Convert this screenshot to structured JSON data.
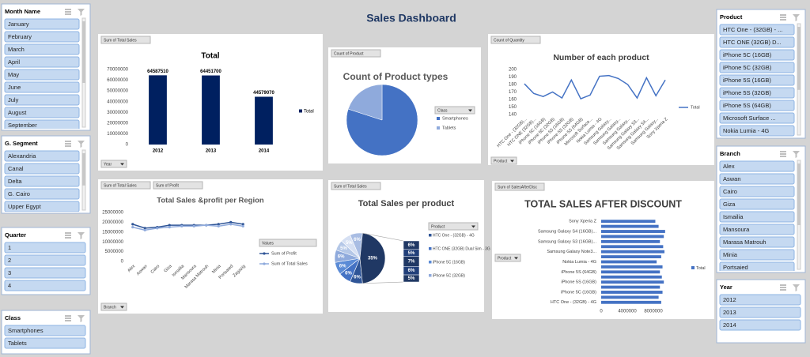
{
  "title": "Sales Dashboard",
  "slicers": [
    {
      "title": "Month Name",
      "items": [
        "January",
        "February",
        "March",
        "April",
        "May",
        "June",
        "July",
        "August",
        "September"
      ]
    },
    {
      "title": "G. Segment",
      "items": [
        "Alexandria",
        "Canal",
        "Delta",
        "G. Cairo",
        "Upper Egypt"
      ]
    },
    {
      "title": "Quarter",
      "items": [
        1,
        2,
        3,
        4
      ]
    },
    {
      "title": "Class",
      "items": [
        "Smartphones",
        "Tablets"
      ]
    },
    {
      "title": "Product",
      "items": [
        "HTC One - (32GB) - ...",
        "HTC ONE (32GB) D...",
        "iPhone 5C (16GB)",
        "iPhone 5C (32GB)",
        "iPhone 5S (16GB)",
        "iPhone 5S (32GB)",
        "iPhone 5S (64GB)",
        "Microsoft Surface ...",
        "Nokia Lumia - 4G"
      ]
    },
    {
      "title": "Branch",
      "items": [
        "Alex",
        "Aswan",
        "Cairo",
        "Giza",
        "Ismailia",
        "Mansoura",
        "Marasa Matrouh",
        "Minia",
        "Portsaied"
      ]
    },
    {
      "title": "Year",
      "items": [
        2012,
        2013,
        2014
      ]
    }
  ],
  "chart_data": [
    {
      "type": "bar",
      "title": "Total",
      "field_buttons": [
        "Sum of Total Sales"
      ],
      "filter_button": "Year",
      "categories": [
        2012,
        2013,
        2014
      ],
      "series": [
        {
          "name": "Total",
          "color": "#002060",
          "values": [
            64587510,
            64451700,
            44579070
          ]
        }
      ],
      "ylim": [
        0,
        70000000
      ],
      "yticks": [
        0,
        10000000,
        20000000,
        30000000,
        40000000,
        50000000,
        60000000,
        70000000
      ],
      "grid": false
    },
    {
      "type": "pie",
      "title": "Count of Product types",
      "field_buttons": [
        "Count of Product"
      ],
      "legend_title": "Class",
      "categories": [
        "Smartphones",
        "Tablets"
      ],
      "values": [
        80,
        20
      ],
      "colors": [
        "#4472c4",
        "#8faadc"
      ]
    },
    {
      "type": "line",
      "title": "Number of each product",
      "field_buttons": [
        "Count of Quantity"
      ],
      "filter_button": "Product",
      "categories": [
        "HTC One - (32GB)...",
        "HTC ONE (32GB)...",
        "iPhone 5C (16GB)",
        "iPhone 5C (32GB)",
        "iPhone 5S (16GB)",
        "iPhone 5S (32GB)",
        "iPhone 5S (64GB)",
        "Microsoft Surface...",
        "Nokia Lumia - 4G",
        "Samsung Galaxy...",
        "Samsung Galaxy...",
        "Samsung Galaxy...",
        "Samsung Galaxy S3...",
        "Samsung Galaxy S4...",
        "Samsung Galaxy...",
        "Sony Xperia Z"
      ],
      "series": [
        {
          "name": "Total",
          "color": "#4472c4",
          "values": [
            181,
            168,
            164,
            170,
            162,
            186,
            161,
            166,
            191,
            192,
            188,
            180,
            162,
            189,
            165,
            186
          ]
        }
      ],
      "ylim": [
        140,
        200
      ],
      "yticks": [
        140,
        150,
        160,
        170,
        180,
        190,
        200
      ],
      "markers": false
    },
    {
      "type": "line",
      "title": "Total Sales &profit per Region",
      "field_buttons": [
        "Sum of Total Sales",
        "Sum of Profit"
      ],
      "filter_button": "Branch",
      "legend_title": "Values",
      "categories": [
        "Alex",
        "Aswan",
        "Cairo",
        "Giza",
        "Ismailia",
        "Mansoura",
        "Marasa Matrouh",
        "Minia",
        "Portsaied",
        "Zagazig"
      ],
      "series": [
        {
          "name": "Sum of Profit",
          "color": "#2f5597",
          "values": [
            19000000,
            17000000,
            17500000,
            18500000,
            18500000,
            18500000,
            18500000,
            19000000,
            20000000,
            19000000
          ]
        },
        {
          "name": "Sum of Total Sales",
          "color": "#8faadc",
          "values": [
            17500000,
            16000000,
            17000000,
            17500000,
            18000000,
            18000000,
            18500000,
            18000000,
            19000000,
            18000000
          ]
        }
      ],
      "ylim": [
        0,
        25000000
      ],
      "yticks": [
        0,
        5000000,
        10000000,
        15000000,
        20000000,
        25000000
      ],
      "markers": true
    },
    {
      "type": "pie",
      "title": "Total Sales per product",
      "field_buttons": [
        "Sum of Total Sales"
      ],
      "legend_title": "Product",
      "legend_items": [
        "HTC One - (32GB) - 4G",
        "HTC ONE (32GB) Dual Sim - 3G",
        "iPhone 5C (16GB)",
        "iPhone 5C (32GB)"
      ],
      "values": [
        6,
        6,
        6,
        6,
        5,
        5,
        6,
        35
      ],
      "value_labels": [
        "6%",
        "6%",
        "6%",
        "6%",
        "5%",
        "5%",
        "6%",
        "35%"
      ],
      "colors": [
        "#2f5597",
        "#4472c4",
        "#5b8bd6",
        "#8faadc",
        "#b4c7e7",
        "#d6e0f3",
        "#a9bde3",
        "#203864"
      ],
      "secondary_values": [
        6,
        5,
        7,
        6,
        5
      ],
      "secondary_value_labels": [
        "6%",
        "5%",
        "7%",
        "6%",
        "5%"
      ],
      "secondary_colors": [
        "#203864",
        "#22407a",
        "#203864",
        "#22407a",
        "#203864"
      ]
    },
    {
      "type": "bar",
      "orientation": "horizontal",
      "title": "TOTAL SALES AFTER DISCOUNT",
      "field_buttons": [
        "Sum of SalesAfterDisc"
      ],
      "filter_button": "Product",
      "categories": [
        "HTC One - (32GB) - 4G",
        null,
        "iPhone 5C (16GB)",
        null,
        "iPhone 5S (16GB)",
        null,
        "iPhone 5S (64GB)",
        null,
        "Nokia Lumia - 4G",
        null,
        "Samsung Galaxy Note3...",
        null,
        "Samsung Galaxy S3 (16GB)...",
        null,
        "Samsung Galaxy S4 (16GB)...",
        null,
        "Sony Xperia Z"
      ],
      "series": [
        {
          "name": "Total",
          "color": "#4472c4",
          "values": [
            9200000,
            8800000,
            9400000,
            9000000,
            9600000,
            9300000,
            9000000,
            9400000,
            8500000,
            9200000,
            9700000,
            9500000,
            9000000,
            9600000,
            9800000,
            8800000,
            8300000
          ]
        }
      ],
      "xlim": [
        0,
        10000000
      ],
      "xticks": [
        0,
        4000000,
        8000000
      ]
    }
  ]
}
